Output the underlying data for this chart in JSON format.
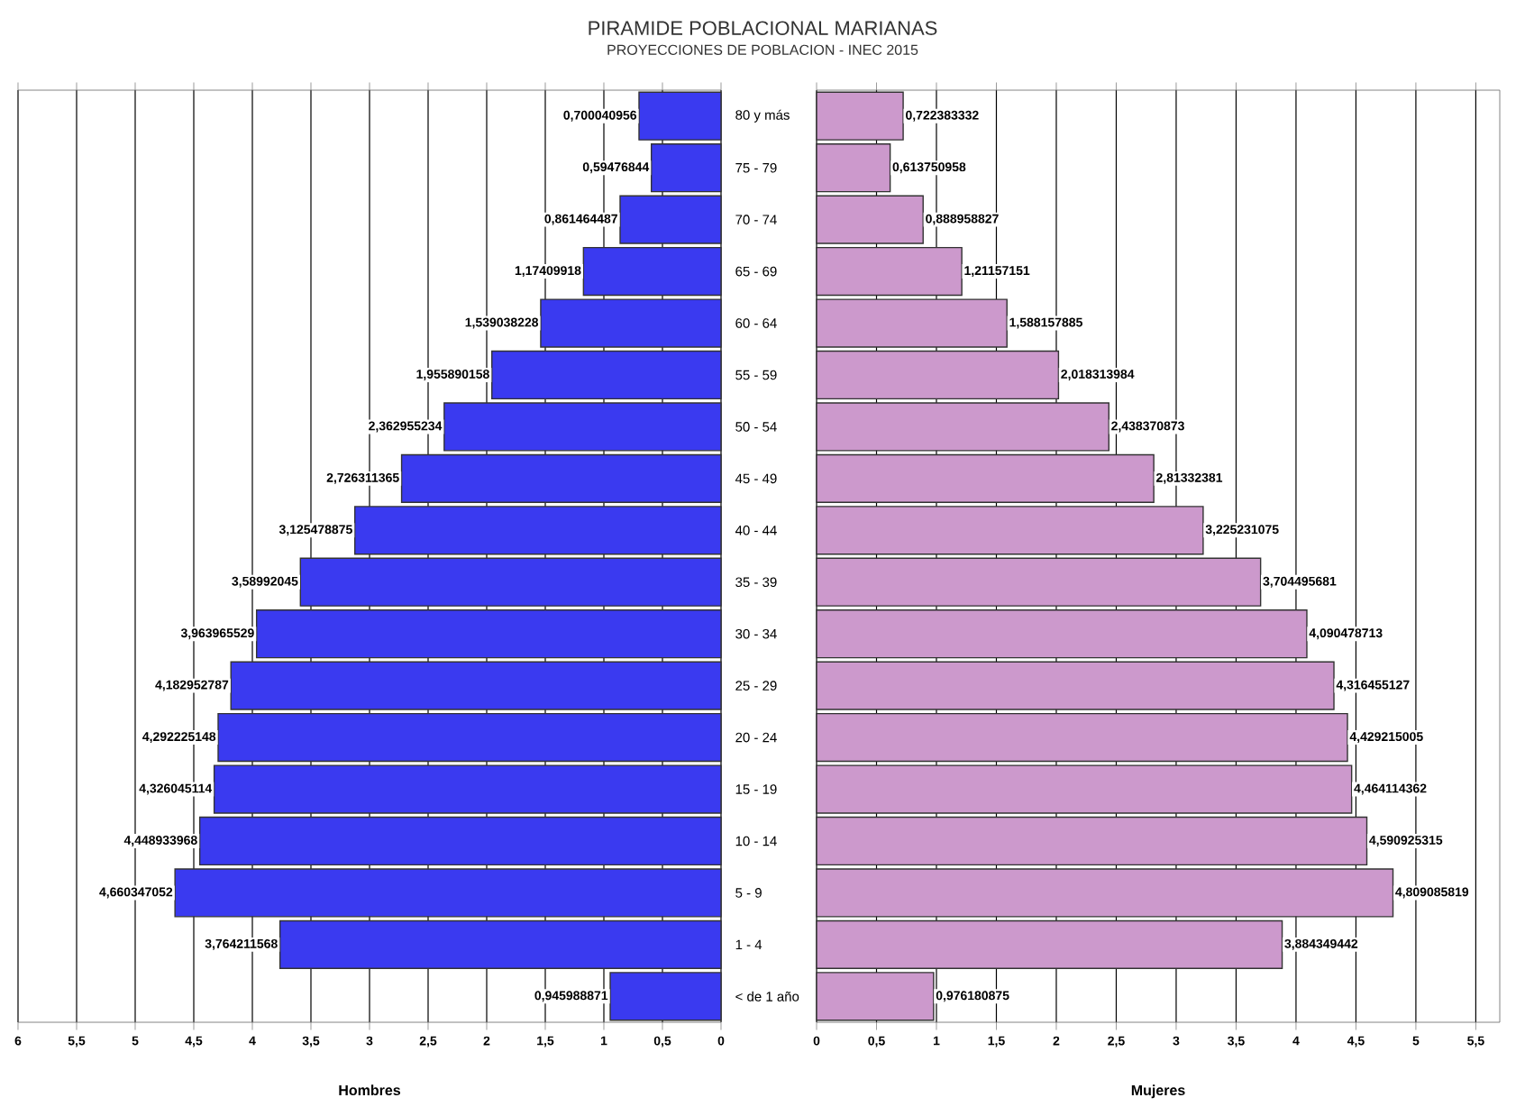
{
  "chart_data": [
    {
      "type": "bar",
      "orientation": "horizontal",
      "title": "PIRAMIDE POBLACIONAL MARIANAS",
      "subtitle": "PROYECCIONES DE POBLACION - INEC 2015",
      "xlabel": "Hombres",
      "categories": [
        "80 y más",
        "75 - 79",
        "70 - 74",
        "65 - 69",
        "60 - 64",
        "55 - 59",
        "50 - 54",
        "45 - 49",
        "40 - 44",
        "35 - 39",
        "30 - 34",
        "25 - 29",
        "20 - 24",
        "15 - 19",
        "10 - 14",
        "5 - 9",
        "1 - 4",
        "< de 1 año"
      ],
      "values": [
        0.700040956,
        0.59476844,
        0.861464487,
        1.17409918,
        1.539038228,
        1.955890158,
        2.362955234,
        2.726311365,
        3.125478875,
        3.58992045,
        3.963965529,
        4.182952787,
        4.292225148,
        4.326045114,
        4.448933968,
        4.660347052,
        3.764211568,
        0.945988871
      ],
      "value_labels": [
        "0,700040956",
        "0,59476844",
        "0,861464487",
        "1,17409918",
        "1,539038228",
        "1,955890158",
        "2,362955234",
        "2,726311365",
        "3,125478875",
        "3,58992045",
        "3,963965529",
        "4,182952787",
        "4,292225148",
        "4,326045114",
        "4,448933968",
        "4,660347052",
        "3,764211568",
        "0,945988871"
      ],
      "color": "#3a3af0",
      "xlim": [
        6,
        0
      ],
      "xticks": [
        6,
        {
          "value": 5.5,
          "label": "5,5"
        },
        5,
        {
          "value": 4.5,
          "label": "4,5"
        },
        4,
        {
          "value": 3.5,
          "label": "3,5"
        },
        3,
        {
          "value": 2.5,
          "label": "2,5"
        },
        2,
        {
          "value": 1.5,
          "label": "1,5"
        },
        1,
        {
          "value": 0.5,
          "label": "0,5"
        },
        0
      ],
      "grid": "x"
    },
    {
      "type": "bar",
      "orientation": "horizontal",
      "xlabel": "Mujeres",
      "categories": [
        null,
        null,
        null,
        null,
        null,
        null,
        null,
        null,
        null,
        null,
        null,
        null,
        null,
        null,
        null,
        null,
        null,
        null
      ],
      "values": [
        0.722383332,
        0.613750958,
        0.888958827,
        1.21157151,
        1.588157885,
        2.018313984,
        2.438370873,
        2.81332381,
        3.225231075,
        3.704495681,
        4.090478713,
        4.316455127,
        4.429215005,
        4.464114362,
        4.590925315,
        4.809085819,
        3.884349442,
        0.976180875
      ],
      "value_labels": [
        "0,722383332",
        "0,613750958",
        "0,888958827",
        "1,21157151",
        "1,588157885",
        "2,018313984",
        "2,438370873",
        "2,81332381",
        "3,225231075",
        "3,704495681",
        "4,090478713",
        "4,316455127",
        "4,429215005",
        "4,464114362",
        "4,590925315",
        "4,809085819",
        "3,884349442",
        "0,976180875"
      ],
      "color": "#cc99cc",
      "xlim": [
        0,
        5.7
      ],
      "xticks": [
        0,
        {
          "value": 0.5,
          "label": "0,5"
        },
        1,
        {
          "value": 1.5,
          "label": "1,5"
        },
        2,
        {
          "value": 2.5,
          "label": "2,5"
        },
        3,
        {
          "value": 3.5,
          "label": "3,5"
        },
        4,
        {
          "value": 4.5,
          "label": "4,5"
        },
        5,
        {
          "value": 5.5,
          "label": "5,5"
        }
      ],
      "grid": "x"
    }
  ]
}
